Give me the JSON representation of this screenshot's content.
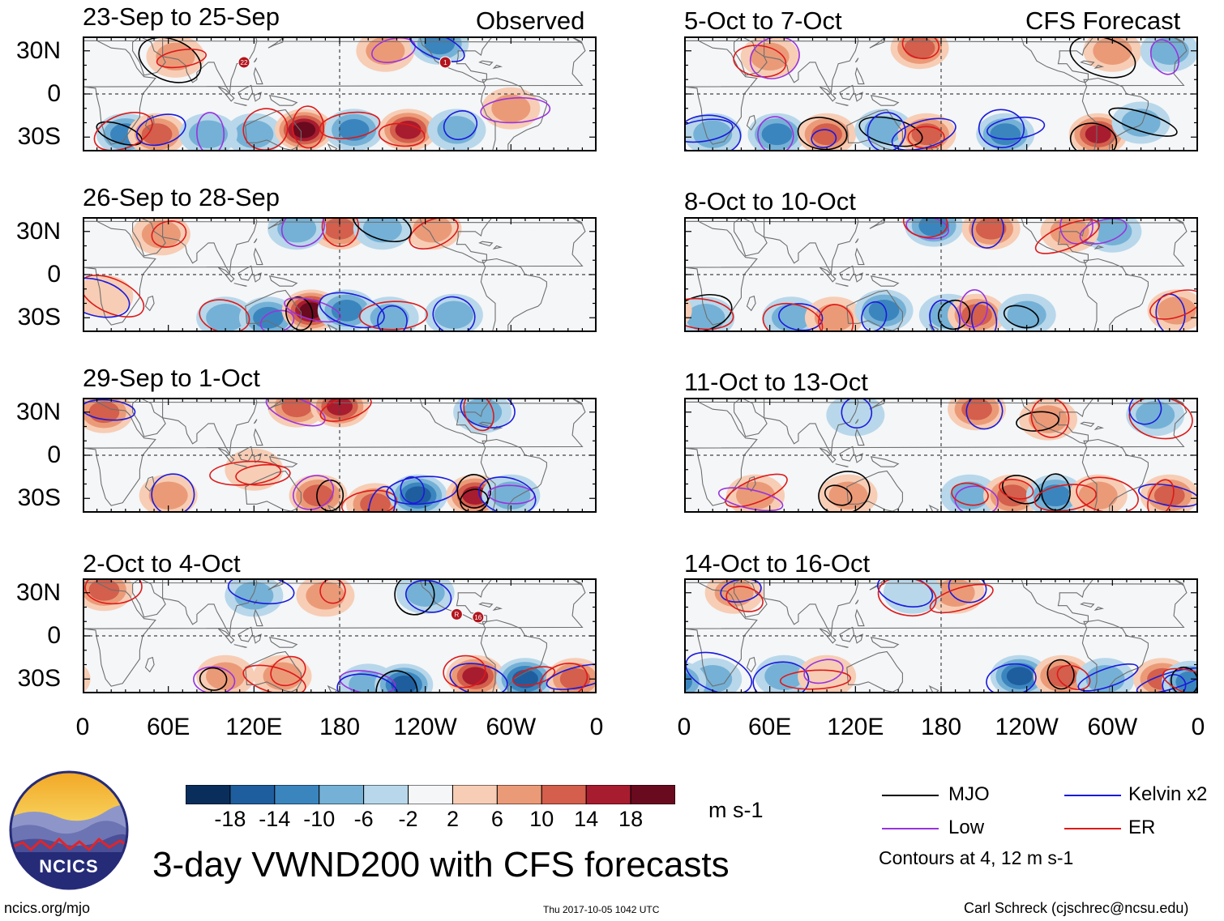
{
  "header": {
    "left": "Observed",
    "right": "CFS Forecast"
  },
  "panels": {
    "observed": [
      {
        "dates": "23-Sep to 25-Sep"
      },
      {
        "dates": "26-Sep to 28-Sep"
      },
      {
        "dates": "29-Sep to 1-Oct"
      },
      {
        "dates": "2-Oct to 4-Oct"
      }
    ],
    "forecast": [
      {
        "dates": "5-Oct to 7-Oct"
      },
      {
        "dates": "8-Oct to 10-Oct"
      },
      {
        "dates": "11-Oct to 13-Oct"
      },
      {
        "dates": "14-Oct to 16-Oct"
      }
    ]
  },
  "axes": {
    "lat_labels": [
      "30N",
      "0",
      "30S"
    ],
    "lon_labels": [
      "0",
      "60E",
      "120E",
      "180",
      "120W",
      "60W",
      "0"
    ]
  },
  "storms": {
    "panel1": [
      "22",
      "1"
    ],
    "panel4": [
      "R",
      "16"
    ]
  },
  "colorbar": {
    "labels": [
      "-18",
      "-14",
      "-10",
      "-6",
      "-2",
      "2",
      "6",
      "10",
      "14",
      "18"
    ],
    "colors": [
      "#0a2e5c",
      "#1f5e9e",
      "#3b85bf",
      "#75b1d6",
      "#b8d7ea",
      "#f4f6f8",
      "#f7cdb5",
      "#eb9a78",
      "#d35f4c",
      "#a81c2f",
      "#6a0a1e"
    ],
    "units": "m s-1"
  },
  "legend": {
    "items": [
      {
        "label": "MJO",
        "color": "#000000"
      },
      {
        "label": "Kelvin x2",
        "color": "#1a1adc"
      },
      {
        "label": "Low",
        "color": "#9933dd"
      },
      {
        "label": "ER",
        "color": "#dd1a1a"
      }
    ],
    "note": "Contours at 4, 12 m s-1"
  },
  "title": "3-day VWND200 with CFS forecasts",
  "logo": {
    "text": "NCICS"
  },
  "footer": {
    "url": "ncics.org/mjo",
    "timestamp": "Thu 2017-10-05 1042 UTC",
    "credit": "Carl Schreck (cjschrec@ncsu.edu)"
  },
  "chart_data": {
    "type": "heatmap",
    "variable": "200-hPa meridional wind anomaly (3-day mean)",
    "units": "m s-1",
    "lat_range": [
      -40,
      40
    ],
    "lon_range": [
      0,
      360
    ],
    "color_levels": [
      -18,
      -14,
      -10,
      -6,
      -2,
      2,
      6,
      10,
      14,
      18
    ],
    "contour_levels": [
      4,
      12
    ],
    "contour_fields": [
      "MJO",
      "Kelvin x2",
      "Low",
      "ER"
    ],
    "periods_observed": [
      "23-Sep to 25-Sep",
      "26-Sep to 28-Sep",
      "29-Sep to 1-Oct",
      "2-Oct to 4-Oct"
    ],
    "periods_forecast": [
      "5-Oct to 7-Oct",
      "8-Oct to 10-Oct",
      "11-Oct to 13-Oct",
      "14-Oct to 16-Oct"
    ],
    "anomaly_centers": [
      [
        {
          "lon": 30,
          "lat": -28,
          "v": -12
        },
        {
          "lon": 52,
          "lat": -28,
          "v": 12
        },
        {
          "lon": 120,
          "lat": -28,
          "v": -8
        },
        {
          "lon": 155,
          "lat": -25,
          "v": 20
        },
        {
          "lon": 190,
          "lat": -25,
          "v": -14
        },
        {
          "lon": 228,
          "lat": -25,
          "v": 18
        },
        {
          "lon": 262,
          "lat": -25,
          "v": -10
        },
        {
          "lon": 300,
          "lat": -10,
          "v": 8
        },
        {
          "lon": 212,
          "lat": 30,
          "v": 10
        },
        {
          "lon": 65,
          "lat": 26,
          "v": 10
        },
        {
          "lon": 250,
          "lat": 35,
          "v": -12
        },
        {
          "lon": 88,
          "lat": -28,
          "v": -8
        }
      ],
      [
        {
          "lon": 100,
          "lat": -30,
          "v": -8
        },
        {
          "lon": 130,
          "lat": -30,
          "v": -14
        },
        {
          "lon": 160,
          "lat": -25,
          "v": 20
        },
        {
          "lon": 185,
          "lat": -25,
          "v": -12
        },
        {
          "lon": 215,
          "lat": -30,
          "v": -8
        },
        {
          "lon": 260,
          "lat": -28,
          "v": -8
        },
        {
          "lon": 180,
          "lat": 32,
          "v": 12
        },
        {
          "lon": 150,
          "lat": 32,
          "v": -10
        },
        {
          "lon": 245,
          "lat": 32,
          "v": 10
        },
        {
          "lon": 210,
          "lat": 32,
          "v": -8
        },
        {
          "lon": 55,
          "lat": 28,
          "v": 8
        },
        {
          "lon": 15,
          "lat": -15,
          "v": 6
        }
      ],
      [
        {
          "lon": 15,
          "lat": 30,
          "v": 12
        },
        {
          "lon": 150,
          "lat": 34,
          "v": 14
        },
        {
          "lon": 120,
          "lat": -10,
          "v": 6
        },
        {
          "lon": 180,
          "lat": 34,
          "v": 16
        },
        {
          "lon": 165,
          "lat": -28,
          "v": 14
        },
        {
          "lon": 205,
          "lat": -34,
          "v": 12
        },
        {
          "lon": 235,
          "lat": -28,
          "v": -18
        },
        {
          "lon": 275,
          "lat": -28,
          "v": 18
        },
        {
          "lon": 300,
          "lat": -28,
          "v": -10
        },
        {
          "lon": 280,
          "lat": 30,
          "v": -8
        },
        {
          "lon": 60,
          "lat": -28,
          "v": 8
        }
      ],
      [
        {
          "lon": 15,
          "lat": 32,
          "v": 14
        },
        {
          "lon": 100,
          "lat": -28,
          "v": 8
        },
        {
          "lon": 140,
          "lat": -28,
          "v": 10
        },
        {
          "lon": 200,
          "lat": -34,
          "v": -10
        },
        {
          "lon": 225,
          "lat": -34,
          "v": -16
        },
        {
          "lon": 275,
          "lat": -28,
          "v": 18
        },
        {
          "lon": 310,
          "lat": -30,
          "v": -18
        },
        {
          "lon": 345,
          "lat": -30,
          "v": 14
        },
        {
          "lon": 170,
          "lat": 28,
          "v": 8
        },
        {
          "lon": 240,
          "lat": 30,
          "v": -10
        },
        {
          "lon": 120,
          "lat": 28,
          "v": -8
        }
      ],
      [
        {
          "lon": 20,
          "lat": -28,
          "v": -10
        },
        {
          "lon": 65,
          "lat": -28,
          "v": -14
        },
        {
          "lon": 100,
          "lat": -28,
          "v": 14
        },
        {
          "lon": 140,
          "lat": -25,
          "v": -10
        },
        {
          "lon": 170,
          "lat": -28,
          "v": 12
        },
        {
          "lon": 225,
          "lat": -28,
          "v": -14
        },
        {
          "lon": 290,
          "lat": -28,
          "v": 16
        },
        {
          "lon": 320,
          "lat": -20,
          "v": -10
        },
        {
          "lon": 60,
          "lat": 26,
          "v": 10
        },
        {
          "lon": 165,
          "lat": 32,
          "v": 12
        },
        {
          "lon": 300,
          "lat": 30,
          "v": 10
        },
        {
          "lon": 340,
          "lat": 30,
          "v": -8
        }
      ],
      [
        {
          "lon": 15,
          "lat": -30,
          "v": -10
        },
        {
          "lon": 75,
          "lat": -30,
          "v": -10
        },
        {
          "lon": 105,
          "lat": -30,
          "v": 10
        },
        {
          "lon": 140,
          "lat": -25,
          "v": -12
        },
        {
          "lon": 185,
          "lat": -28,
          "v": -10
        },
        {
          "lon": 205,
          "lat": -28,
          "v": 14
        },
        {
          "lon": 240,
          "lat": -28,
          "v": -10
        },
        {
          "lon": 175,
          "lat": 34,
          "v": -12
        },
        {
          "lon": 215,
          "lat": 32,
          "v": 14
        },
        {
          "lon": 300,
          "lat": 30,
          "v": -10
        },
        {
          "lon": 270,
          "lat": 30,
          "v": 10
        },
        {
          "lon": 345,
          "lat": -25,
          "v": 8
        }
      ],
      [
        {
          "lon": 50,
          "lat": -28,
          "v": 8
        },
        {
          "lon": 115,
          "lat": -28,
          "v": 8
        },
        {
          "lon": 200,
          "lat": -28,
          "v": -8
        },
        {
          "lon": 230,
          "lat": -28,
          "v": 14
        },
        {
          "lon": 260,
          "lat": -28,
          "v": -12
        },
        {
          "lon": 290,
          "lat": -28,
          "v": 10
        },
        {
          "lon": 340,
          "lat": -28,
          "v": 12
        },
        {
          "lon": 205,
          "lat": 32,
          "v": 12
        },
        {
          "lon": 255,
          "lat": 25,
          "v": 8
        },
        {
          "lon": 330,
          "lat": 28,
          "v": -8
        },
        {
          "lon": 120,
          "lat": 28,
          "v": -6
        }
      ],
      [
        {
          "lon": 20,
          "lat": -30,
          "v": -10
        },
        {
          "lon": 70,
          "lat": -28,
          "v": -8
        },
        {
          "lon": 235,
          "lat": -28,
          "v": -16
        },
        {
          "lon": 265,
          "lat": -28,
          "v": 14
        },
        {
          "lon": 295,
          "lat": -30,
          "v": -8
        },
        {
          "lon": 335,
          "lat": -30,
          "v": 12
        },
        {
          "lon": 355,
          "lat": -32,
          "v": -14
        },
        {
          "lon": 190,
          "lat": 30,
          "v": 8
        },
        {
          "lon": 35,
          "lat": 30,
          "v": 8
        },
        {
          "lon": 160,
          "lat": 30,
          "v": -6
        },
        {
          "lon": 100,
          "lat": -28,
          "v": 6
        }
      ]
    ]
  }
}
